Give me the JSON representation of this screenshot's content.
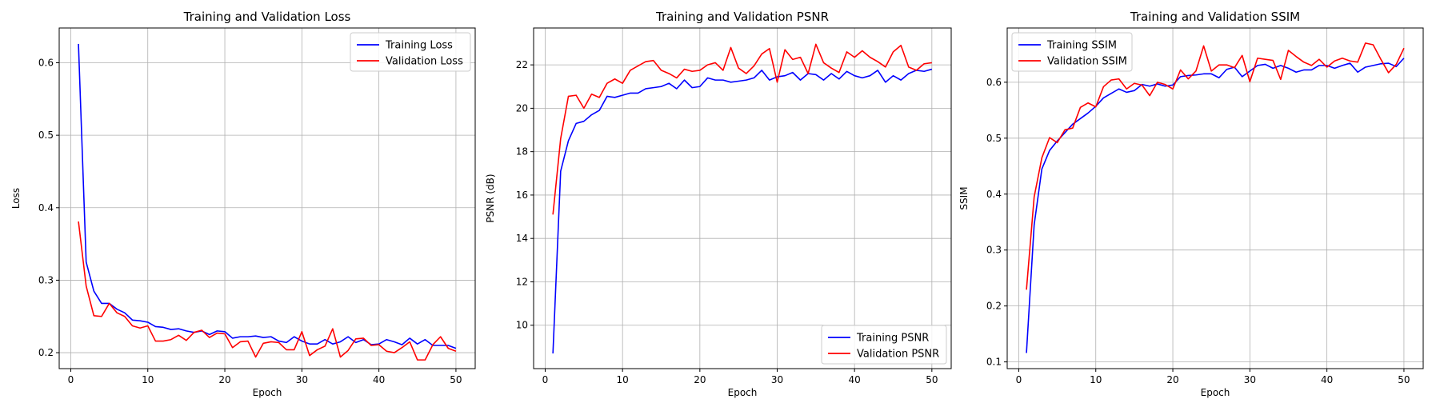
{
  "chart_data": [
    {
      "type": "line",
      "title": "Training and Validation Loss",
      "xlabel": "Epoch",
      "ylabel": "Loss",
      "xlim": [
        -1.5,
        52.5
      ],
      "ylim": [
        0.178,
        0.648
      ],
      "xticks": [
        0,
        10,
        20,
        30,
        40,
        50
      ],
      "yticks": [
        0.2,
        0.3,
        0.4,
        0.5,
        0.6
      ],
      "ytick_labels": [
        "0.2",
        "0.3",
        "0.4",
        "0.5",
        "0.6"
      ],
      "grid": true,
      "legend_position": "top-right",
      "x": [
        1,
        2,
        3,
        4,
        5,
        6,
        7,
        8,
        9,
        10,
        11,
        12,
        13,
        14,
        15,
        16,
        17,
        18,
        19,
        20,
        21,
        22,
        23,
        24,
        25,
        26,
        27,
        28,
        29,
        30,
        31,
        32,
        33,
        34,
        35,
        36,
        37,
        38,
        39,
        40,
        41,
        42,
        43,
        44,
        45,
        46,
        47,
        48,
        49,
        50
      ],
      "series": [
        {
          "name": "Training Loss",
          "color": "#0000ff",
          "values": [
            0.626,
            0.325,
            0.285,
            0.268,
            0.268,
            0.26,
            0.255,
            0.245,
            0.244,
            0.242,
            0.236,
            0.235,
            0.232,
            0.233,
            0.23,
            0.228,
            0.23,
            0.225,
            0.23,
            0.229,
            0.22,
            0.222,
            0.222,
            0.223,
            0.221,
            0.222,
            0.216,
            0.214,
            0.222,
            0.216,
            0.212,
            0.212,
            0.218,
            0.212,
            0.215,
            0.222,
            0.214,
            0.218,
            0.211,
            0.212,
            0.218,
            0.215,
            0.211,
            0.22,
            0.212,
            0.218,
            0.21,
            0.21,
            0.21,
            0.206
          ]
        },
        {
          "name": "Validation Loss",
          "color": "#ff0000",
          "values": [
            0.381,
            0.292,
            0.251,
            0.25,
            0.268,
            0.255,
            0.25,
            0.237,
            0.234,
            0.237,
            0.216,
            0.216,
            0.218,
            0.224,
            0.217,
            0.228,
            0.231,
            0.221,
            0.227,
            0.226,
            0.207,
            0.215,
            0.216,
            0.194,
            0.213,
            0.215,
            0.214,
            0.204,
            0.204,
            0.229,
            0.196,
            0.204,
            0.209,
            0.233,
            0.194,
            0.203,
            0.219,
            0.22,
            0.21,
            0.211,
            0.202,
            0.2,
            0.207,
            0.215,
            0.19,
            0.19,
            0.211,
            0.222,
            0.206,
            0.202
          ]
        }
      ]
    },
    {
      "type": "line",
      "title": "Training and Validation PSNR",
      "xlabel": "Epoch",
      "ylabel": "PSNR (dB)",
      "xlim": [
        -1.5,
        52.5
      ],
      "ylim": [
        8.0,
        23.7
      ],
      "xticks": [
        0,
        10,
        20,
        30,
        40,
        50
      ],
      "yticks": [
        10,
        12,
        14,
        16,
        18,
        20,
        22
      ],
      "ytick_labels": [
        "10",
        "12",
        "14",
        "16",
        "18",
        "20",
        "22"
      ],
      "grid": true,
      "legend_position": "bottom-right",
      "x": [
        1,
        2,
        3,
        4,
        5,
        6,
        7,
        8,
        9,
        10,
        11,
        12,
        13,
        14,
        15,
        16,
        17,
        18,
        19,
        20,
        21,
        22,
        23,
        24,
        25,
        26,
        27,
        28,
        29,
        30,
        31,
        32,
        33,
        34,
        35,
        36,
        37,
        38,
        39,
        40,
        41,
        42,
        43,
        44,
        45,
        46,
        47,
        48,
        49,
        50
      ],
      "series": [
        {
          "name": "Training PSNR",
          "color": "#0000ff",
          "values": [
            8.7,
            17.1,
            18.5,
            19.3,
            19.4,
            19.7,
            19.9,
            20.55,
            20.5,
            20.6,
            20.7,
            20.7,
            20.9,
            20.95,
            21.0,
            21.15,
            20.9,
            21.3,
            20.95,
            21.0,
            21.4,
            21.3,
            21.3,
            21.2,
            21.25,
            21.3,
            21.4,
            21.75,
            21.3,
            21.45,
            21.5,
            21.65,
            21.3,
            21.6,
            21.55,
            21.3,
            21.6,
            21.35,
            21.7,
            21.5,
            21.4,
            21.5,
            21.75,
            21.2,
            21.5,
            21.3,
            21.6,
            21.75,
            21.7,
            21.8
          ]
        },
        {
          "name": "Validation PSNR",
          "color": "#ff0000",
          "values": [
            15.1,
            18.6,
            20.55,
            20.6,
            20.0,
            20.65,
            20.5,
            21.15,
            21.35,
            21.15,
            21.75,
            21.95,
            22.15,
            22.2,
            21.75,
            21.6,
            21.4,
            21.8,
            21.7,
            21.75,
            22.0,
            22.1,
            21.75,
            22.8,
            21.85,
            21.6,
            21.95,
            22.5,
            22.75,
            21.2,
            22.7,
            22.25,
            22.35,
            21.6,
            22.95,
            22.1,
            21.85,
            21.65,
            22.6,
            22.35,
            22.65,
            22.35,
            22.15,
            21.9,
            22.6,
            22.9,
            21.9,
            21.75,
            22.05,
            22.1
          ]
        }
      ]
    },
    {
      "type": "line",
      "title": "Training and Validation SSIM",
      "xlabel": "Epoch",
      "ylabel": "SSIM",
      "xlim": [
        -1.5,
        52.5
      ],
      "ylim": [
        0.088,
        0.697
      ],
      "xticks": [
        0,
        10,
        20,
        30,
        40,
        50
      ],
      "yticks": [
        0.1,
        0.2,
        0.3,
        0.4,
        0.5,
        0.6
      ],
      "ytick_labels": [
        "0.1",
        "0.2",
        "0.3",
        "0.4",
        "0.5",
        "0.6"
      ],
      "grid": true,
      "legend_position": "top-left",
      "x": [
        1,
        2,
        3,
        4,
        5,
        6,
        7,
        8,
        9,
        10,
        11,
        12,
        13,
        14,
        15,
        16,
        17,
        18,
        19,
        20,
        21,
        22,
        23,
        24,
        25,
        26,
        27,
        28,
        29,
        30,
        31,
        32,
        33,
        34,
        35,
        36,
        37,
        38,
        39,
        40,
        41,
        42,
        43,
        44,
        45,
        46,
        47,
        48,
        49,
        50
      ],
      "series": [
        {
          "name": "Training SSIM",
          "color": "#0000ff",
          "values": [
            0.116,
            0.345,
            0.445,
            0.478,
            0.495,
            0.51,
            0.525,
            0.535,
            0.545,
            0.557,
            0.572,
            0.58,
            0.588,
            0.582,
            0.585,
            0.596,
            0.593,
            0.597,
            0.593,
            0.595,
            0.61,
            0.612,
            0.613,
            0.615,
            0.615,
            0.608,
            0.623,
            0.627,
            0.61,
            0.62,
            0.63,
            0.632,
            0.625,
            0.63,
            0.625,
            0.618,
            0.622,
            0.622,
            0.63,
            0.63,
            0.625,
            0.63,
            0.634,
            0.618,
            0.627,
            0.63,
            0.633,
            0.634,
            0.628,
            0.643
          ]
        },
        {
          "name": "Validation SSIM",
          "color": "#ff0000",
          "values": [
            0.229,
            0.395,
            0.465,
            0.501,
            0.492,
            0.515,
            0.518,
            0.555,
            0.563,
            0.556,
            0.592,
            0.604,
            0.606,
            0.588,
            0.598,
            0.595,
            0.576,
            0.6,
            0.596,
            0.588,
            0.622,
            0.606,
            0.62,
            0.665,
            0.62,
            0.631,
            0.631,
            0.626,
            0.648,
            0.601,
            0.643,
            0.641,
            0.639,
            0.605,
            0.657,
            0.646,
            0.636,
            0.63,
            0.641,
            0.627,
            0.638,
            0.643,
            0.638,
            0.636,
            0.67,
            0.667,
            0.641,
            0.617,
            0.632,
            0.661
          ]
        }
      ]
    }
  ]
}
